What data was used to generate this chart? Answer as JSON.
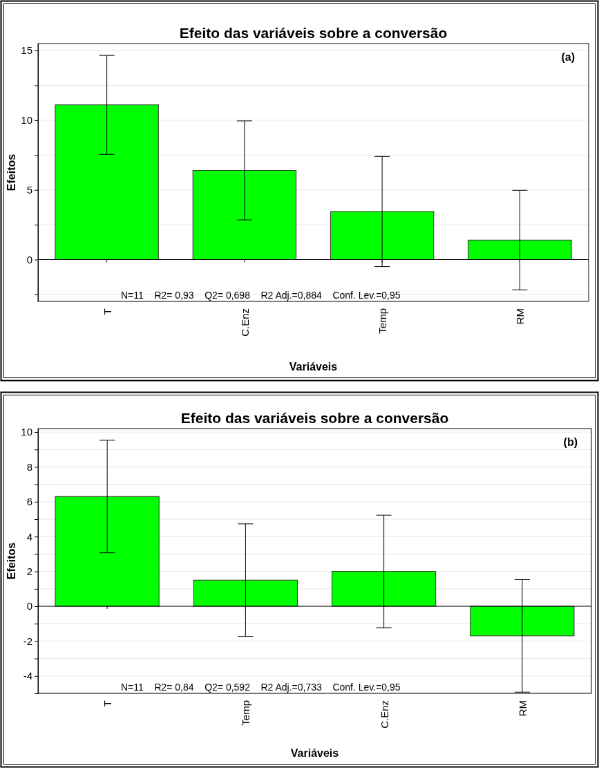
{
  "chart_data": [
    {
      "type": "bar",
      "title": "Efeito das variáveis sobre a conversão",
      "xlabel": "Variáveis",
      "ylabel": "Efeitos",
      "categories": [
        "T",
        "C.Enz",
        "Temp",
        "RM"
      ],
      "values": [
        11.1,
        6.4,
        3.45,
        1.4
      ],
      "errors": [
        3.55,
        3.55,
        3.95,
        3.57
      ],
      "color": "#00ff00",
      "ylim": [
        -3,
        15.5
      ],
      "yticks": [
        {
          "value": -2.5,
          "label": null
        },
        0,
        {
          "value": 2.5,
          "label": null
        },
        5,
        {
          "value": 7.5,
          "label": null
        },
        10,
        {
          "value": 12.5,
          "label": null
        },
        15
      ],
      "grid": "y",
      "annotations": [
        "(a)",
        "N=11    R2= 0,93    Q2= 0,698    R2 Adj.=0,884    Conf. Lev.=0,95"
      ]
    },
    {
      "type": "bar",
      "title": "Efeito das variáveis sobre a conversão",
      "xlabel": "Variáveis",
      "ylabel": "Efeitos",
      "categories": [
        "T",
        "Temp",
        "C.Enz",
        "RM"
      ],
      "values": [
        6.3,
        1.5,
        2.0,
        -1.7
      ],
      "errors": [
        3.23,
        3.23,
        3.23,
        3.23
      ],
      "color": "#00ff00",
      "ylim": [
        -5,
        10.2
      ],
      "yticks": [
        {
          "value": -5,
          "label": null
        },
        -4,
        {
          "value": -3,
          "label": null
        },
        -2,
        {
          "value": -1,
          "label": null
        },
        0,
        {
          "value": 1,
          "label": null
        },
        2,
        {
          "value": 3,
          "label": null
        },
        4,
        {
          "value": 5,
          "label": null
        },
        6,
        {
          "value": 7,
          "label": null
        },
        8,
        {
          "value": 9,
          "label": null
        },
        10
      ],
      "grid": "y",
      "annotations": [
        "(b)",
        "N=11    R2= 0,84    Q2= 0,592    R2 Adj.=0,733    Conf. Lev.=0,95"
      ]
    }
  ]
}
